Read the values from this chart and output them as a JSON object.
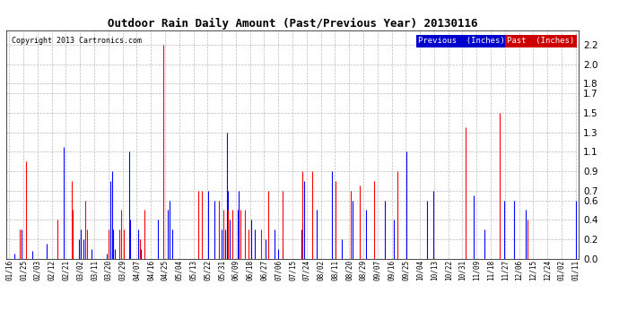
{
  "title": "Outdoor Rain Daily Amount (Past/Previous Year) 20130116",
  "copyright": "Copyright 2013 Cartronics.com",
  "legend_previous": "Previous  (Inches)",
  "legend_past": "Past  (Inches)",
  "previous_color": "#0000ff",
  "past_color": "#ff0000",
  "background_color": "#ffffff",
  "plot_bg_color": "#ffffff",
  "grid_color": "#bbbbbb",
  "yticks": [
    0.0,
    0.2,
    0.4,
    0.6,
    0.7,
    0.9,
    1.1,
    1.3,
    1.5,
    1.7,
    1.8,
    2.0,
    2.2
  ],
  "ylim": [
    0.0,
    2.35
  ],
  "xlabel_rotation": 90,
  "xtick_labels": [
    "01/16",
    "01/25",
    "02/03",
    "02/12",
    "02/21",
    "03/02",
    "03/11",
    "03/20",
    "03/29",
    "04/07",
    "04/16",
    "04/25",
    "05/04",
    "05/13",
    "05/22",
    "05/31",
    "06/09",
    "06/18",
    "06/27",
    "07/06",
    "07/15",
    "07/24",
    "08/02",
    "08/11",
    "08/20",
    "08/29",
    "09/07",
    "09/16",
    "09/25",
    "10/04",
    "10/13",
    "10/22",
    "10/31",
    "11/09",
    "11/18",
    "11/27",
    "12/06",
    "12/15",
    "12/24",
    "01/02",
    "01/11"
  ],
  "n_days": 366,
  "prev_rain": [
    0.0,
    0.0,
    0.0,
    0.05,
    0.0,
    0.0,
    0.0,
    0.0,
    0.3,
    0.0,
    0.0,
    0.0,
    0.0,
    0.0,
    0.0,
    0.08,
    0.0,
    0.0,
    0.0,
    0.0,
    0.0,
    0.0,
    0.0,
    0.0,
    0.15,
    0.0,
    0.0,
    0.0,
    0.0,
    0.0,
    0.0,
    0.0,
    0.0,
    0.0,
    0.0,
    1.15,
    0.0,
    0.0,
    0.0,
    0.0,
    0.0,
    0.0,
    0.0,
    0.0,
    0.0,
    0.2,
    0.3,
    0.0,
    0.2,
    0.0,
    0.0,
    0.0,
    0.0,
    0.1,
    0.0,
    0.0,
    0.0,
    0.0,
    0.0,
    0.0,
    0.0,
    0.0,
    0.0,
    0.05,
    0.0,
    0.8,
    0.9,
    0.3,
    0.1,
    0.0,
    0.0,
    0.0,
    0.0,
    0.0,
    0.0,
    0.0,
    0.0,
    1.1,
    0.4,
    0.0,
    0.0,
    0.0,
    0.0,
    0.3,
    0.2,
    0.1,
    0.0,
    0.0,
    0.0,
    0.0,
    0.0,
    0.0,
    0.0,
    0.0,
    0.0,
    0.0,
    0.4,
    0.0,
    0.0,
    0.0,
    0.0,
    0.0,
    0.5,
    0.6,
    0.0,
    0.3,
    0.0,
    0.0,
    0.0,
    0.0,
    0.0,
    0.0,
    0.0,
    0.0,
    0.0,
    0.0,
    0.0,
    0.0,
    0.0,
    0.0,
    0.0,
    0.0,
    0.0,
    0.0,
    0.0,
    0.0,
    0.0,
    0.0,
    0.7,
    0.0,
    0.0,
    0.0,
    0.6,
    0.0,
    0.0,
    0.0,
    0.0,
    0.3,
    0.0,
    0.3,
    1.3,
    0.7,
    0.4,
    0.0,
    0.0,
    0.0,
    0.0,
    0.5,
    0.7,
    0.0,
    0.0,
    0.0,
    0.0,
    0.0,
    0.0,
    0.0,
    0.4,
    0.0,
    0.3,
    0.0,
    0.0,
    0.0,
    0.0,
    0.0,
    0.0,
    0.2,
    0.0,
    0.0,
    0.0,
    0.0,
    0.0,
    0.3,
    0.0,
    0.1,
    0.0,
    0.0,
    0.1,
    0.0,
    0.0,
    0.0,
    0.0,
    0.0,
    0.0,
    0.0,
    0.0,
    0.0,
    0.0,
    0.0,
    0.3,
    0.0,
    0.8,
    0.0,
    0.0,
    0.0,
    0.0,
    0.0,
    0.0,
    0.0,
    0.5,
    0.0,
    0.0,
    0.0,
    0.0,
    0.0,
    0.0,
    0.0,
    0.0,
    0.0,
    0.9,
    0.0,
    0.0,
    0.0,
    0.0,
    0.0,
    0.2,
    0.0,
    0.0,
    0.0,
    0.0,
    0.0,
    0.0,
    0.6,
    0.0,
    0.0,
    0.0,
    0.0,
    0.0,
    0.0,
    0.0,
    0.0,
    0.5,
    0.0,
    0.0,
    0.0,
    0.0,
    0.0,
    0.0,
    0.0,
    0.0,
    0.0,
    0.0,
    0.0,
    0.6,
    0.0,
    0.0,
    0.0,
    0.0,
    0.0,
    0.4,
    0.0,
    0.0,
    0.0,
    0.0,
    0.0,
    0.0,
    0.0,
    1.1,
    0.0,
    0.0,
    0.0,
    0.0,
    0.0,
    0.0,
    0.0,
    0.0,
    0.0,
    0.0,
    0.0,
    0.0,
    0.6,
    0.0,
    0.0,
    0.0,
    0.7,
    0.0,
    0.0,
    0.0,
    0.0,
    0.0,
    0.0,
    0.0,
    0.0,
    0.0,
    0.0,
    0.0,
    0.0,
    0.0,
    0.0,
    0.0,
    0.0,
    0.0,
    0.0,
    0.0,
    0.0,
    0.0,
    0.0,
    0.0,
    0.0,
    0.0,
    0.65,
    0.0,
    0.0,
    0.0,
    0.0,
    0.0,
    0.0,
    0.3,
    0.0,
    0.0,
    0.0,
    0.0,
    0.0,
    0.0,
    0.0,
    0.0,
    0.0,
    0.0,
    0.0,
    0.0,
    0.6,
    0.0,
    0.0,
    0.0,
    0.0,
    0.0,
    0.6,
    0.0,
    0.0,
    0.0,
    0.0,
    0.0,
    0.0,
    0.0,
    0.5,
    0.0,
    0.0,
    0.0,
    0.0,
    0.0,
    0.0,
    0.0,
    0.0,
    0.0,
    0.0,
    0.0,
    0.0,
    0.0,
    0.0,
    0.0,
    0.0,
    0.0,
    0.0,
    0.0,
    0.0,
    0.0,
    0.0,
    0.0,
    0.0,
    0.0,
    0.0,
    0.0,
    0.0,
    0.0,
    0.0,
    0.0,
    0.6
  ],
  "past_rain": [
    0.0,
    0.0,
    0.0,
    0.0,
    0.0,
    0.0,
    0.0,
    0.3,
    0.0,
    0.0,
    0.0,
    1.0,
    0.0,
    0.0,
    0.0,
    0.0,
    0.0,
    0.0,
    0.0,
    0.0,
    0.0,
    0.0,
    0.0,
    0.0,
    0.0,
    0.0,
    0.0,
    0.0,
    0.0,
    0.0,
    0.0,
    0.4,
    0.0,
    0.0,
    0.0,
    0.0,
    0.0,
    0.0,
    0.0,
    0.0,
    0.8,
    0.5,
    0.0,
    0.0,
    0.0,
    0.0,
    0.0,
    0.0,
    0.0,
    0.6,
    0.3,
    0.0,
    0.0,
    0.0,
    0.0,
    0.0,
    0.0,
    0.0,
    0.0,
    0.0,
    0.0,
    0.0,
    0.0,
    0.0,
    0.3,
    0.0,
    0.0,
    0.0,
    0.0,
    0.0,
    0.0,
    0.3,
    0.5,
    0.0,
    0.3,
    0.0,
    0.0,
    0.0,
    0.0,
    0.0,
    0.0,
    0.0,
    0.0,
    0.0,
    0.2,
    0.0,
    0.0,
    0.5,
    0.0,
    0.0,
    0.0,
    0.0,
    0.0,
    0.0,
    0.0,
    0.0,
    0.0,
    0.0,
    0.0,
    2.2,
    0.0,
    0.0,
    0.0,
    0.0,
    0.0,
    0.0,
    0.0,
    0.0,
    0.0,
    0.0,
    0.0,
    0.0,
    0.0,
    0.0,
    0.0,
    0.0,
    0.0,
    0.0,
    0.0,
    0.0,
    0.0,
    0.0,
    0.7,
    0.0,
    0.7,
    0.0,
    0.0,
    0.0,
    0.0,
    0.0,
    0.0,
    0.0,
    0.0,
    0.0,
    0.0,
    0.6,
    0.0,
    0.0,
    0.5,
    0.0,
    0.0,
    0.5,
    0.0,
    0.0,
    0.5,
    0.0,
    0.0,
    0.0,
    0.0,
    0.5,
    0.0,
    0.0,
    0.5,
    0.0,
    0.3,
    0.0,
    0.0,
    0.0,
    0.0,
    0.0,
    0.0,
    0.0,
    0.3,
    0.0,
    0.0,
    0.0,
    0.0,
    0.7,
    0.0,
    0.0,
    0.0,
    0.0,
    0.0,
    0.0,
    0.0,
    0.0,
    0.7,
    0.0,
    0.0,
    0.0,
    0.0,
    0.0,
    0.0,
    0.0,
    0.0,
    0.0,
    0.0,
    0.0,
    0.0,
    0.9,
    0.0,
    0.0,
    0.0,
    0.0,
    0.0,
    0.9,
    0.0,
    0.0,
    0.0,
    0.0,
    0.0,
    0.0,
    0.0,
    0.0,
    0.0,
    0.0,
    0.0,
    0.0,
    0.0,
    0.0,
    0.8,
    0.0,
    0.0,
    0.0,
    0.0,
    0.0,
    0.0,
    0.0,
    0.0,
    0.0,
    0.7,
    0.0,
    0.0,
    0.0,
    0.0,
    0.0,
    0.75,
    0.0,
    0.0,
    0.0,
    0.0,
    0.0,
    0.0,
    0.0,
    0.0,
    0.8,
    0.0,
    0.0,
    0.0,
    0.0,
    0.0,
    0.0,
    0.0,
    0.0,
    0.0,
    0.0,
    0.0,
    0.0,
    0.0,
    0.0,
    0.9,
    0.0,
    0.0,
    0.0,
    0.0,
    0.0,
    0.0,
    0.0,
    0.0,
    0.0,
    0.0,
    0.0,
    0.0,
    0.0,
    0.0,
    0.0,
    0.0,
    0.0,
    0.0,
    0.0,
    0.0,
    0.0,
    0.0,
    0.0,
    0.0,
    0.0,
    0.0,
    0.0,
    0.0,
    0.0,
    0.0,
    0.0,
    0.0,
    0.0,
    0.0,
    0.0,
    0.0,
    0.0,
    0.0,
    0.0,
    0.0,
    0.0,
    0.0,
    0.0,
    1.35,
    0.0,
    0.0,
    0.0,
    0.0,
    0.0,
    0.0,
    0.0,
    0.0,
    0.0,
    0.0,
    0.0,
    0.0,
    0.0,
    0.0,
    0.0,
    0.0,
    0.0,
    0.0,
    0.0,
    0.0,
    0.0,
    1.5,
    0.0,
    0.0,
    0.0,
    0.0,
    0.0,
    0.0,
    0.0,
    0.0,
    0.0,
    0.0,
    0.0,
    0.0,
    0.0,
    0.0,
    0.0,
    0.0,
    0.0,
    0.4,
    0.0,
    0.0,
    0.0,
    0.0,
    0.0,
    0.0,
    0.0,
    0.0,
    0.0,
    0.0,
    0.0,
    0.0,
    0.0,
    0.0,
    0.0,
    0.0,
    0.0,
    0.0,
    0.0,
    0.0,
    0.0,
    0.0,
    0.0,
    0.0,
    0.0,
    0.0,
    0.0,
    0.0,
    0.0,
    0.0,
    0.0
  ]
}
